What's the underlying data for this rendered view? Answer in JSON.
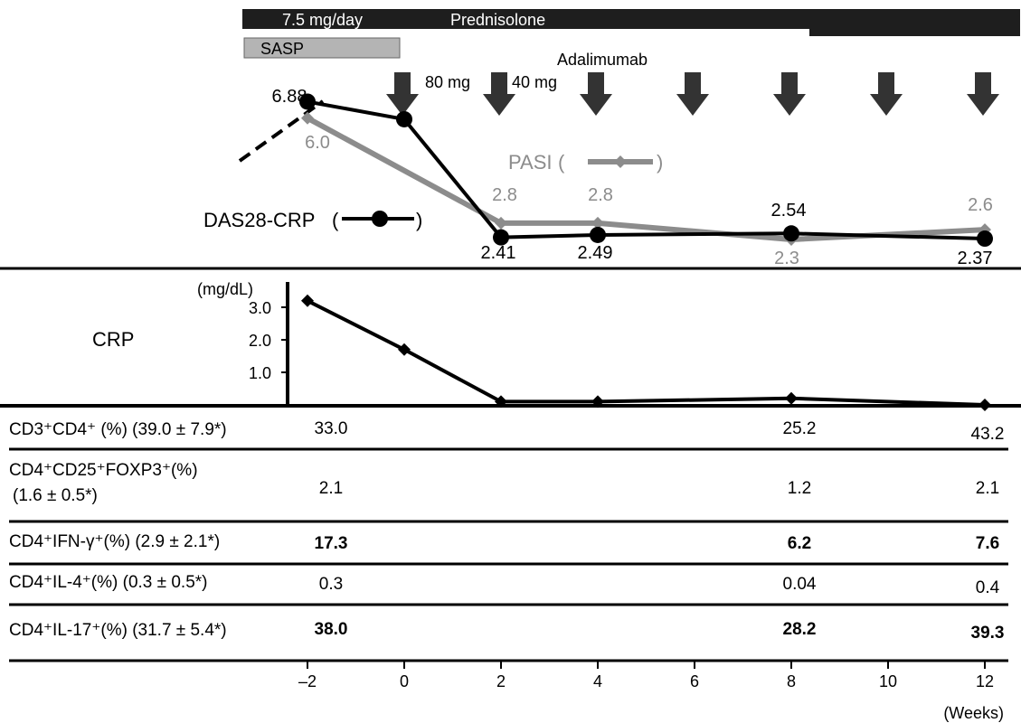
{
  "treatments": {
    "prednisolone_dose": "7.5 mg/day",
    "prednisolone_label": "Prednisolone",
    "sasp_label": "SASP",
    "adalimumab_label": "Adalimumab",
    "adalimumab_doses": [
      "80 mg",
      "40 mg"
    ],
    "injection_weeks": [
      0,
      2,
      4,
      6,
      8,
      10,
      12
    ]
  },
  "colors": {
    "das28": "#000000",
    "pasi": "#8c8c8c",
    "arrow": "#333333",
    "bar": "#1e1e1e",
    "sasp": "#b4b4b4"
  },
  "chart_data": [
    {
      "type": "line",
      "x_unit": "Weeks",
      "series": [
        {
          "name": "DAS28-CRP",
          "x": [
            -2,
            0,
            2,
            4,
            8,
            12
          ],
          "values": [
            6.88,
            6.3,
            2.41,
            2.49,
            2.54,
            2.37
          ],
          "value_labels": [
            "6.88",
            "",
            "2.41",
            "2.49",
            "2.54",
            "2.37"
          ],
          "marker": "circle"
        },
        {
          "name": "PASI",
          "x": [
            -2,
            2,
            4,
            8,
            12
          ],
          "values": [
            6.0,
            2.8,
            2.8,
            2.3,
            2.6
          ],
          "value_labels": [
            "6.0",
            "2.8",
            "2.8",
            "2.3",
            "2.6"
          ],
          "marker": "diamond"
        }
      ]
    },
    {
      "type": "line",
      "title": "CRP",
      "ylabel": "(mg/dL)",
      "yticks": [
        "1.0",
        "2.0",
        "3.0"
      ],
      "ylim": [
        0,
        3.8
      ],
      "series": [
        {
          "name": "CRP",
          "x": [
            -2,
            0,
            2,
            4,
            8,
            12
          ],
          "values": [
            3.2,
            1.7,
            0.1,
            0.1,
            0.2,
            0.0
          ]
        }
      ]
    },
    {
      "type": "table",
      "rows": [
        {
          "label": "CD3⁺CD4⁺ (%) (39.0 ± 7.9*)",
          "week_m2": "33.0",
          "week_8": "25.2",
          "week_12": "43.2",
          "bold": false
        },
        {
          "label": "CD4⁺CD25⁺FOXP3⁺(%)",
          "label_line2": "(1.6 ± 0.5*)",
          "week_m2": "2.1",
          "week_8": "1.2",
          "week_12": "2.1",
          "bold": false
        },
        {
          "label": "CD4⁺IFN-γ⁺(%) (2.9 ± 2.1*)",
          "week_m2": "17.3",
          "week_8": "6.2",
          "week_12": "7.6",
          "bold": true
        },
        {
          "label": "CD4⁺IL-4⁺(%) (0.3 ± 0.5*)",
          "week_m2": "0.3",
          "week_8": "0.04",
          "week_12": "0.4",
          "bold": false
        },
        {
          "label": "CD4⁺IL-17⁺(%) (31.7 ± 5.4*)",
          "week_m2": "38.0",
          "week_8": "28.2",
          "week_12": "39.3",
          "bold": true
        }
      ]
    }
  ],
  "x_axis": {
    "ticks": [
      "–2",
      "0",
      "2",
      "4",
      "6",
      "8",
      "10",
      "12"
    ],
    "tick_values": [
      -2,
      0,
      2,
      4,
      6,
      8,
      10,
      12
    ],
    "label": "(Weeks)"
  }
}
